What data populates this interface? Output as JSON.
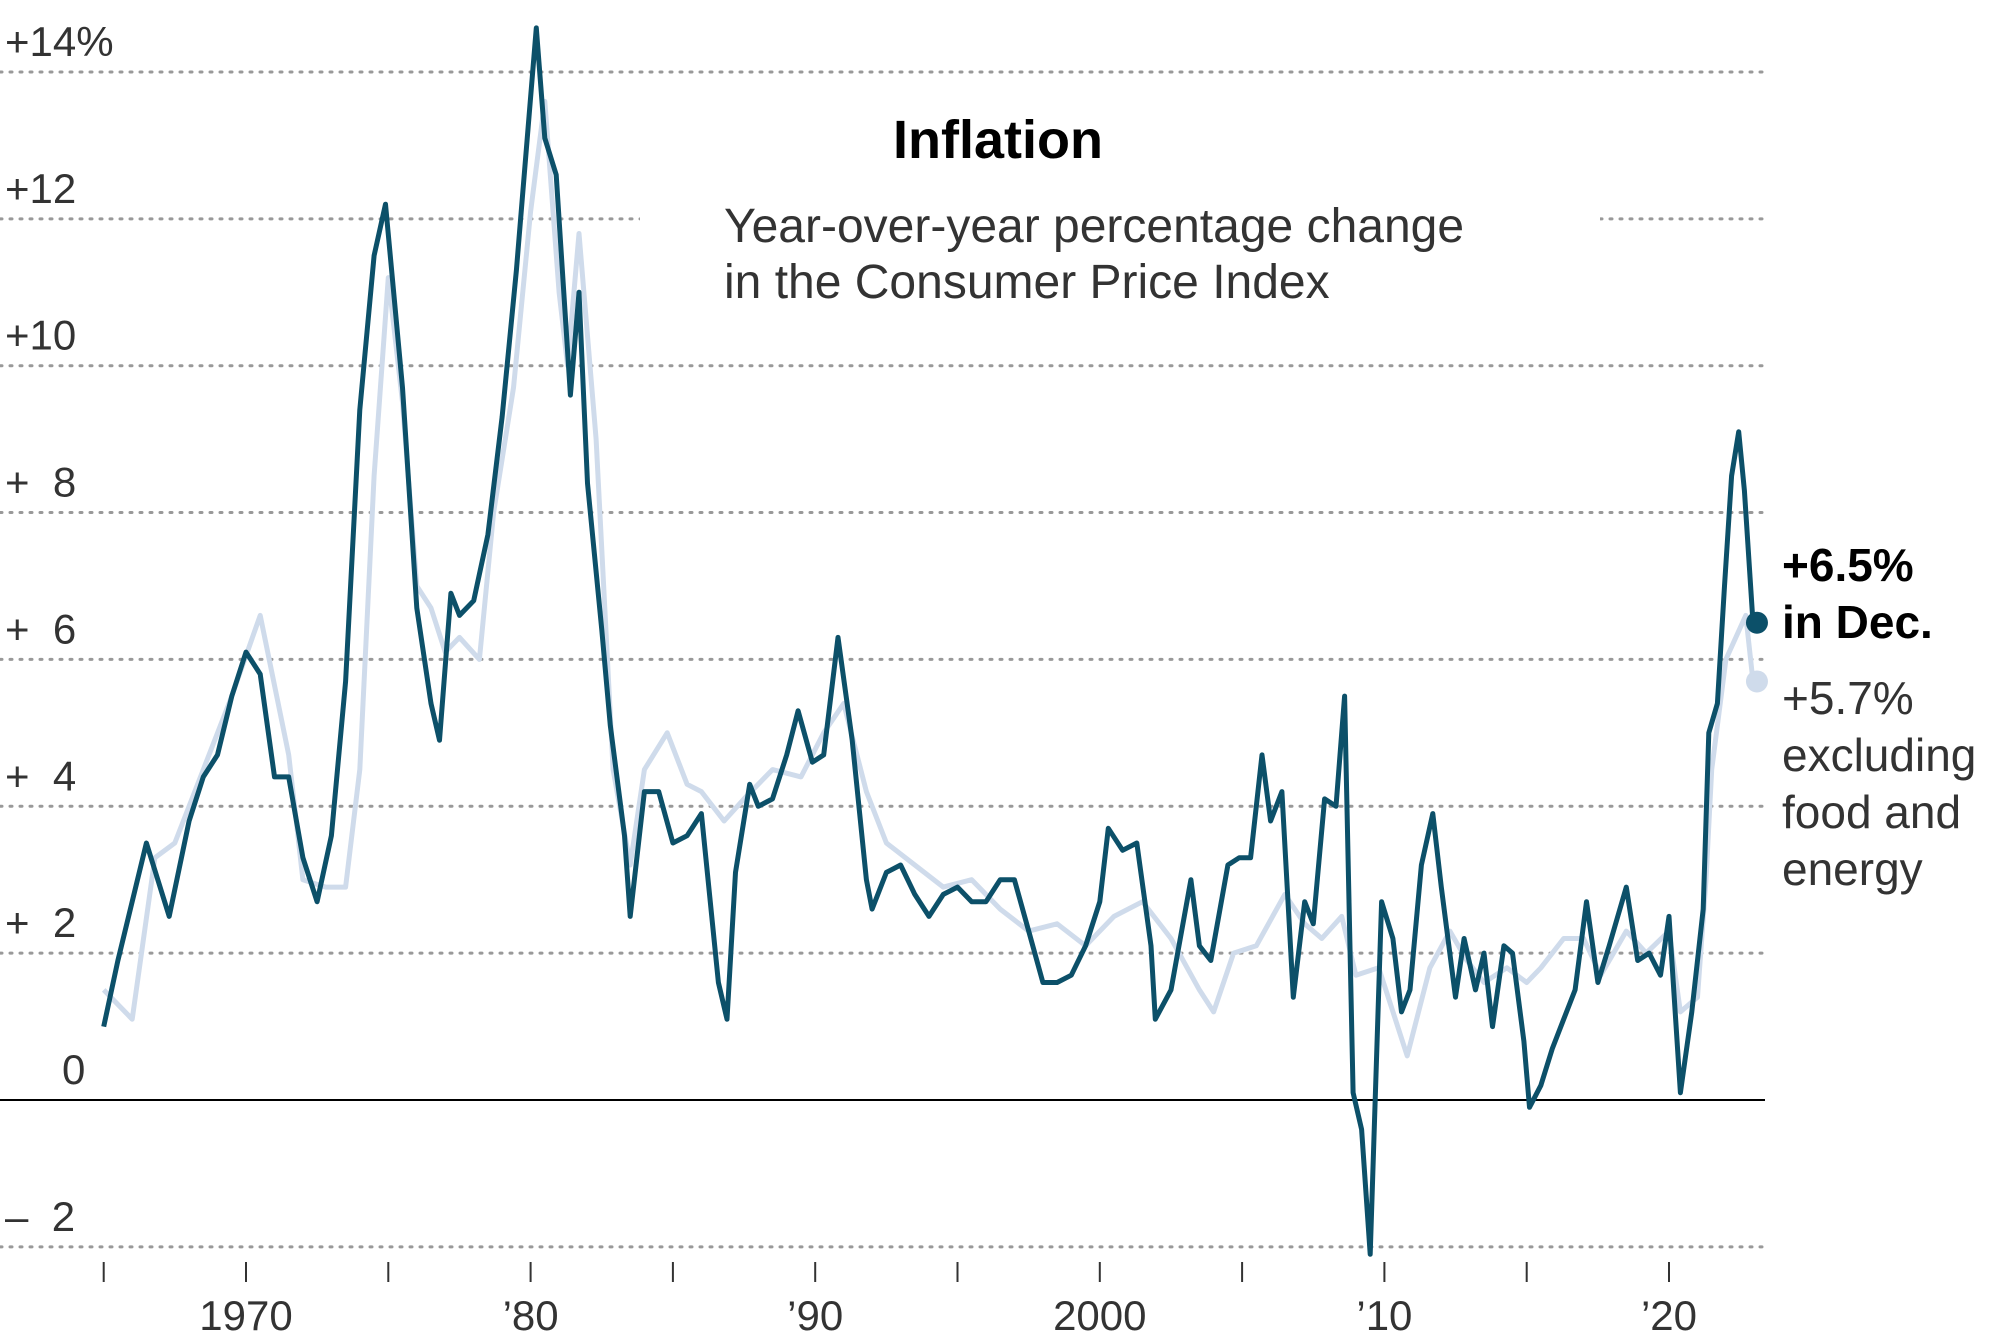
{
  "chart_data": {
    "type": "line",
    "title": "Inflation",
    "subtitle": [
      "Year-over-year percentage change",
      "in the Consumer Price Index"
    ],
    "ylim": [
      -2.2,
      14.6
    ],
    "xlim": [
      1965,
      2023
    ],
    "grid": true,
    "y_ticks": [
      {
        "value": 14,
        "label": "+14%"
      },
      {
        "value": 12,
        "label": "+12"
      },
      {
        "value": 10,
        "label": "+10"
      },
      {
        "value": 8,
        "label": "+  8"
      },
      {
        "value": 6,
        "label": "+  6"
      },
      {
        "value": 4,
        "label": "+  4"
      },
      {
        "value": 2,
        "label": "+  2"
      },
      {
        "value": 0,
        "label": "0"
      },
      {
        "value": -2,
        "label": "–  2"
      }
    ],
    "x_tick_marks": [
      1965,
      1970,
      1975,
      1980,
      1985,
      1990,
      1995,
      2000,
      2005,
      2010,
      2015,
      2020
    ],
    "x_labels": [
      {
        "value": 1970,
        "label": "1970"
      },
      {
        "value": 1980,
        "label": "’80"
      },
      {
        "value": 1990,
        "label": "’90"
      },
      {
        "value": 2000,
        "label": "2000"
      },
      {
        "value": 2010,
        "label": "’10"
      },
      {
        "value": 2020,
        "label": "’20"
      }
    ],
    "series": [
      {
        "key": "core",
        "color": "#cfdbeb",
        "points": [
          [
            1965,
            1.5
          ],
          [
            1966,
            1.1
          ],
          [
            1966.8,
            3.3
          ],
          [
            1967.5,
            3.5
          ],
          [
            1968.5,
            4.5
          ],
          [
            1969.5,
            5.5
          ],
          [
            1970.5,
            6.6
          ],
          [
            1971.5,
            4.7
          ],
          [
            1972,
            3.0
          ],
          [
            1972.8,
            2.9
          ],
          [
            1973.5,
            2.9
          ],
          [
            1974,
            4.5
          ],
          [
            1974.5,
            8.5
          ],
          [
            1975,
            11.2
          ],
          [
            1975.5,
            9.5
          ],
          [
            1976,
            7.0
          ],
          [
            1976.5,
            6.7
          ],
          [
            1977,
            6.1
          ],
          [
            1977.5,
            6.3
          ],
          [
            1978.2,
            6.0
          ],
          [
            1978.7,
            8.0
          ],
          [
            1979.4,
            9.7
          ],
          [
            1980,
            12.1
          ],
          [
            1980.5,
            13.6
          ],
          [
            1981,
            11.0
          ],
          [
            1981.3,
            10.0
          ],
          [
            1981.7,
            11.8
          ],
          [
            1982.3,
            9.0
          ],
          [
            1982.9,
            4.5
          ],
          [
            1983.5,
            3.2
          ],
          [
            1984,
            4.5
          ],
          [
            1984.8,
            5.0
          ],
          [
            1985.5,
            4.3
          ],
          [
            1986,
            4.2
          ],
          [
            1986.8,
            3.8
          ],
          [
            1987.5,
            4.1
          ],
          [
            1988.5,
            4.5
          ],
          [
            1989.5,
            4.4
          ],
          [
            1990.3,
            5.0
          ],
          [
            1991,
            5.4
          ],
          [
            1991.8,
            4.2
          ],
          [
            1992.5,
            3.5
          ],
          [
            1993.5,
            3.2
          ],
          [
            1994.5,
            2.9
          ],
          [
            1995.5,
            3.0
          ],
          [
            1996.5,
            2.6
          ],
          [
            1997.5,
            2.3
          ],
          [
            1998.5,
            2.4
          ],
          [
            1999.5,
            2.1
          ],
          [
            2000.5,
            2.5
          ],
          [
            2001.5,
            2.7
          ],
          [
            2002.5,
            2.2
          ],
          [
            2003.5,
            1.5
          ],
          [
            2004,
            1.2
          ],
          [
            2004.7,
            2.0
          ],
          [
            2005.5,
            2.1
          ],
          [
            2006.5,
            2.8
          ],
          [
            2007.2,
            2.4
          ],
          [
            2007.8,
            2.2
          ],
          [
            2008.5,
            2.5
          ],
          [
            2009,
            1.7
          ],
          [
            2009.8,
            1.8
          ],
          [
            2010.8,
            0.6
          ],
          [
            2011.6,
            1.8
          ],
          [
            2012.3,
            2.3
          ],
          [
            2012.9,
            1.9
          ],
          [
            2013.5,
            1.6
          ],
          [
            2014.3,
            1.8
          ],
          [
            2015,
            1.6
          ],
          [
            2015.5,
            1.8
          ],
          [
            2016.3,
            2.2
          ],
          [
            2017,
            2.2
          ],
          [
            2017.6,
            1.7
          ],
          [
            2018.5,
            2.3
          ],
          [
            2019.2,
            2.0
          ],
          [
            2020,
            2.3
          ],
          [
            2020.4,
            1.2
          ],
          [
            2021,
            1.4
          ],
          [
            2021.3,
            3.0
          ],
          [
            2021.5,
            4.5
          ],
          [
            2022,
            6.0
          ],
          [
            2022.7,
            6.6
          ],
          [
            2022.95,
            5.7
          ]
        ]
      },
      {
        "key": "headline",
        "color": "#0c5069",
        "points": [
          [
            1965,
            1.0
          ],
          [
            1965.5,
            1.9
          ],
          [
            1966.5,
            3.5
          ],
          [
            1967.3,
            2.5
          ],
          [
            1968,
            3.8
          ],
          [
            1968.5,
            4.4
          ],
          [
            1969,
            4.7
          ],
          [
            1969.5,
            5.5
          ],
          [
            1970,
            6.1
          ],
          [
            1970.5,
            5.8
          ],
          [
            1971,
            4.4
          ],
          [
            1971.5,
            4.4
          ],
          [
            1972,
            3.3
          ],
          [
            1972.5,
            2.7
          ],
          [
            1973,
            3.6
          ],
          [
            1973.5,
            5.7
          ],
          [
            1974,
            9.4
          ],
          [
            1974.5,
            11.5
          ],
          [
            1974.9,
            12.2
          ],
          [
            1975.5,
            9.7
          ],
          [
            1976,
            6.7
          ],
          [
            1976.5,
            5.4
          ],
          [
            1976.8,
            4.9
          ],
          [
            1977.2,
            6.9
          ],
          [
            1977.5,
            6.6
          ],
          [
            1978,
            6.8
          ],
          [
            1978.5,
            7.7
          ],
          [
            1979,
            9.3
          ],
          [
            1979.5,
            11.3
          ],
          [
            1980.2,
            14.6
          ],
          [
            1980.5,
            13.1
          ],
          [
            1980.9,
            12.6
          ],
          [
            1981.4,
            9.6
          ],
          [
            1981.7,
            11.0
          ],
          [
            1982,
            8.4
          ],
          [
            1982.5,
            6.4
          ],
          [
            1982.8,
            5.1
          ],
          [
            1983.3,
            3.6
          ],
          [
            1983.5,
            2.5
          ],
          [
            1984,
            4.2
          ],
          [
            1984.5,
            4.2
          ],
          [
            1985,
            3.5
          ],
          [
            1985.5,
            3.6
          ],
          [
            1986,
            3.9
          ],
          [
            1986.6,
            1.6
          ],
          [
            1986.9,
            1.1
          ],
          [
            1987.2,
            3.1
          ],
          [
            1987.7,
            4.3
          ],
          [
            1988,
            4.0
          ],
          [
            1988.5,
            4.1
          ],
          [
            1989,
            4.7
          ],
          [
            1989.4,
            5.3
          ],
          [
            1989.9,
            4.6
          ],
          [
            1990.3,
            4.7
          ],
          [
            1990.8,
            6.3
          ],
          [
            1991.3,
            4.9
          ],
          [
            1991.8,
            3.0
          ],
          [
            1992,
            2.6
          ],
          [
            1992.5,
            3.1
          ],
          [
            1993,
            3.2
          ],
          [
            1993.5,
            2.8
          ],
          [
            1994,
            2.5
          ],
          [
            1994.5,
            2.8
          ],
          [
            1995,
            2.9
          ],
          [
            1995.5,
            2.7
          ],
          [
            1996,
            2.7
          ],
          [
            1996.5,
            3.0
          ],
          [
            1997,
            3.0
          ],
          [
            1997.5,
            2.3
          ],
          [
            1998,
            1.6
          ],
          [
            1998.5,
            1.6
          ],
          [
            1999,
            1.7
          ],
          [
            1999.5,
            2.1
          ],
          [
            2000,
            2.7
          ],
          [
            2000.3,
            3.7
          ],
          [
            2000.8,
            3.4
          ],
          [
            2001.3,
            3.5
          ],
          [
            2001.8,
            2.1
          ],
          [
            2001.95,
            1.1
          ],
          [
            2002.5,
            1.5
          ],
          [
            2003.2,
            3.0
          ],
          [
            2003.5,
            2.1
          ],
          [
            2003.9,
            1.9
          ],
          [
            2004.5,
            3.2
          ],
          [
            2004.9,
            3.3
          ],
          [
            2005.3,
            3.3
          ],
          [
            2005.7,
            4.7
          ],
          [
            2006,
            3.8
          ],
          [
            2006.4,
            4.2
          ],
          [
            2006.8,
            1.4
          ],
          [
            2007.2,
            2.7
          ],
          [
            2007.5,
            2.4
          ],
          [
            2007.9,
            4.1
          ],
          [
            2008.3,
            4.0
          ],
          [
            2008.6,
            5.5
          ],
          [
            2008.9,
            0.1
          ],
          [
            2009.2,
            -0.4
          ],
          [
            2009.5,
            -2.1
          ],
          [
            2009.9,
            2.7
          ],
          [
            2010.3,
            2.2
          ],
          [
            2010.6,
            1.2
          ],
          [
            2010.9,
            1.5
          ],
          [
            2011.3,
            3.2
          ],
          [
            2011.7,
            3.9
          ],
          [
            2012,
            2.9
          ],
          [
            2012.5,
            1.4
          ],
          [
            2012.8,
            2.2
          ],
          [
            2013.2,
            1.5
          ],
          [
            2013.5,
            2.0
          ],
          [
            2013.8,
            1.0
          ],
          [
            2014.2,
            2.1
          ],
          [
            2014.5,
            2.0
          ],
          [
            2014.9,
            0.8
          ],
          [
            2015.1,
            -0.1
          ],
          [
            2015.5,
            0.2
          ],
          [
            2015.9,
            0.7
          ],
          [
            2016.3,
            1.1
          ],
          [
            2016.7,
            1.5
          ],
          [
            2017.1,
            2.7
          ],
          [
            2017.5,
            1.6
          ],
          [
            2017.9,
            2.1
          ],
          [
            2018.5,
            2.9
          ],
          [
            2018.9,
            1.9
          ],
          [
            2019.3,
            2.0
          ],
          [
            2019.7,
            1.7
          ],
          [
            2020.0,
            2.5
          ],
          [
            2020.4,
            0.1
          ],
          [
            2020.8,
            1.2
          ],
          [
            2021.2,
            2.6
          ],
          [
            2021.4,
            5.0
          ],
          [
            2021.7,
            5.4
          ],
          [
            2021.95,
            7.0
          ],
          [
            2022.2,
            8.5
          ],
          [
            2022.45,
            9.1
          ],
          [
            2022.65,
            8.3
          ],
          [
            2022.95,
            6.5
          ]
        ]
      }
    ],
    "annotations": {
      "headline_value": "+6.5%",
      "headline_note": "in Dec.",
      "core_value": "+5.7%",
      "core_note": [
        "excluding",
        "food and",
        "energy"
      ]
    }
  }
}
